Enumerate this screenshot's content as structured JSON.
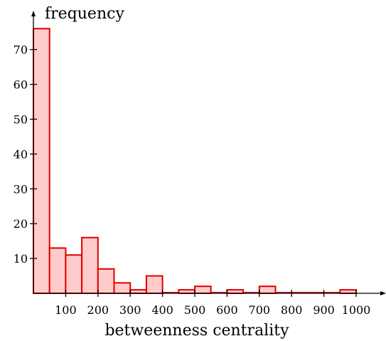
{
  "chart_data": {
    "type": "bar",
    "xlabel": "betweenness centrality",
    "ylabel": "frequency",
    "bin_width": 50,
    "bins": [
      {
        "x0": 0,
        "x1": 50,
        "value": 76
      },
      {
        "x0": 50,
        "x1": 100,
        "value": 13
      },
      {
        "x0": 100,
        "x1": 150,
        "value": 11
      },
      {
        "x0": 150,
        "x1": 200,
        "value": 16
      },
      {
        "x0": 200,
        "x1": 250,
        "value": 7
      },
      {
        "x0": 250,
        "x1": 300,
        "value": 3
      },
      {
        "x0": 300,
        "x1": 350,
        "value": 1
      },
      {
        "x0": 350,
        "x1": 400,
        "value": 5
      },
      {
        "x0": 400,
        "x1": 450,
        "value": 0
      },
      {
        "x0": 450,
        "x1": 500,
        "value": 1
      },
      {
        "x0": 500,
        "x1": 550,
        "value": 2
      },
      {
        "x0": 550,
        "x1": 600,
        "value": 0
      },
      {
        "x0": 600,
        "x1": 650,
        "value": 1
      },
      {
        "x0": 650,
        "x1": 700,
        "value": 0
      },
      {
        "x0": 700,
        "x1": 750,
        "value": 2
      },
      {
        "x0": 750,
        "x1": 800,
        "value": 0
      },
      {
        "x0": 800,
        "x1": 850,
        "value": 0
      },
      {
        "x0": 850,
        "x1": 900,
        "value": 0
      },
      {
        "x0": 900,
        "x1": 950,
        "value": 0
      },
      {
        "x0": 950,
        "x1": 1000,
        "value": 1
      }
    ],
    "xlim": [
      0,
      1000
    ],
    "ylim": [
      0,
      76
    ],
    "xticks": [
      100,
      200,
      300,
      400,
      500,
      600,
      700,
      800,
      900,
      1000
    ],
    "xtick_labels": [
      "100",
      "200",
      "300",
      "400",
      "500",
      "600",
      "700",
      "800",
      "900",
      "1000"
    ],
    "yticks": [
      10,
      20,
      30,
      40,
      50,
      60,
      70
    ],
    "ytick_labels": [
      "10",
      "20",
      "30",
      "40",
      "50",
      "60",
      "70"
    ],
    "grid": false,
    "colors": {
      "bar_fill": "#ffcccc",
      "bar_stroke": "#e00000",
      "axis": "#000000"
    }
  }
}
